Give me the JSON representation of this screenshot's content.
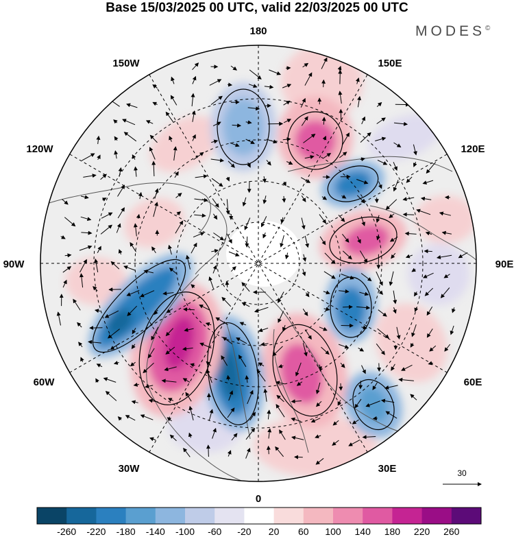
{
  "title": "Base 15/03/2025 00 UTC, valid 22/03/2025 00 UTC",
  "brand": {
    "text": "MODES",
    "mark": "©"
  },
  "map": {
    "projection": "north polar stereographic",
    "longitude_labels": {
      "lon_0": "0",
      "lon_30E": "30E",
      "lon_60E": "60E",
      "lon_90E": "90E",
      "lon_120E": "120E",
      "lon_150E": "150E",
      "lon_180": "180",
      "lon_150W": "150W",
      "lon_120W": "120W",
      "lon_90W": "90W",
      "lon_60W": "60W",
      "lon_30W": "30W"
    },
    "anomaly_field": "shaded anomaly with black contours",
    "vector_field": "wind arrows",
    "reference_vector": {
      "label": "30"
    }
  },
  "colorbar": {
    "tick_labels": [
      "-260",
      "-220",
      "-180",
      "-140",
      "-100",
      "-60",
      "-20",
      "20",
      "60",
      "100",
      "140",
      "180",
      "220",
      "260"
    ],
    "colors": [
      "#0a4466",
      "#16679b",
      "#2b80bf",
      "#5a9fd0",
      "#8db6df",
      "#bfcce8",
      "#e4e3f1",
      "#ffffff",
      "#f9dcdc",
      "#f4b8c0",
      "#ee8cb0",
      "#e05aa2",
      "#c52493",
      "#9a0d86",
      "#5c0b78"
    ]
  },
  "anomalies": [
    {
      "sign": "negative",
      "lon": "180",
      "strength": "moderate"
    },
    {
      "sign": "positive",
      "lon": "150E",
      "strength": "strong"
    },
    {
      "sign": "negative",
      "lon": "120E",
      "strength": "strong"
    },
    {
      "sign": "positive",
      "lon": "90E",
      "strength": "strong"
    },
    {
      "sign": "negative",
      "lon": "60E",
      "strength": "strong"
    },
    {
      "sign": "positive",
      "lon": "30E",
      "strength": "strong"
    },
    {
      "sign": "negative",
      "lon": "0",
      "strength": "very strong"
    },
    {
      "sign": "positive",
      "lon": "45W",
      "strength": "very strong"
    },
    {
      "sign": "negative",
      "lon": "75W",
      "strength": "very strong"
    },
    {
      "sign": "positive",
      "lon": "120W",
      "strength": "weak"
    },
    {
      "sign": "positive",
      "lon": "150W",
      "strength": "weak"
    }
  ]
}
